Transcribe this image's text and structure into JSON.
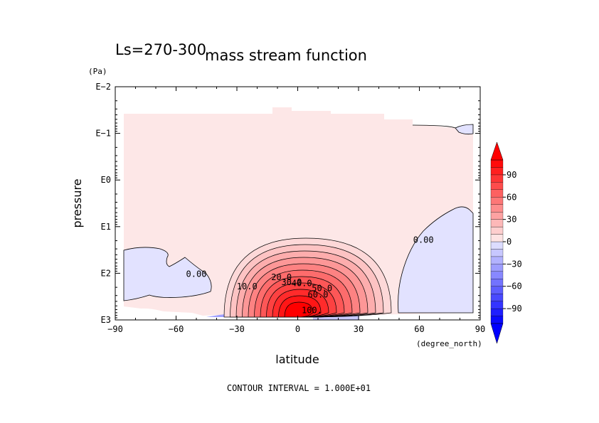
{
  "chart_data": {
    "type": "contour",
    "title": "mass stream function",
    "subtitle": "Ls=270-300",
    "xlabel": "latitude",
    "xunits": "(degree_north)",
    "ylabel": "pressure",
    "yunits": "(Pa)",
    "xlim": [
      -90,
      90
    ],
    "x_ticks": [
      -90,
      -60,
      -30,
      0,
      30,
      60,
      90
    ],
    "x_tick_labels": [
      "−90",
      "−60",
      "−30",
      "0",
      "30",
      "60",
      "90"
    ],
    "y_scale": "log",
    "ylim": [
      0.01,
      1000
    ],
    "y_ticks": [
      0.01,
      0.1,
      1,
      10,
      100,
      1000
    ],
    "y_tick_labels": [
      "E−2",
      "E−1",
      "E0",
      "E1",
      "E2",
      "E3"
    ],
    "contour_labels": [
      {
        "text": "0.00",
        "lat": -50,
        "p": 120
      },
      {
        "text": "0.00",
        "lat": 62,
        "p": 22
      },
      {
        "text": "10.0",
        "lat": -25,
        "p": 220
      },
      {
        "text": "20.0",
        "lat": -8,
        "p": 140
      },
      {
        "text": "30.0",
        "lat": -3,
        "p": 180
      },
      {
        "text": "40.0",
        "lat": 2,
        "p": 190
      },
      {
        "text": "50.0",
        "lat": 12,
        "p": 240
      },
      {
        "text": "60.0",
        "lat": 10,
        "p": 330
      },
      {
        "text": "100.",
        "lat": 7,
        "p": 720
      }
    ],
    "colorbar": {
      "tick_labels": [
        "90",
        "60",
        "30",
        "0",
        "−30",
        "−60",
        "−90"
      ],
      "tick_values": [
        90,
        60,
        30,
        0,
        -30,
        -60,
        -90
      ],
      "range": [
        -110,
        110
      ],
      "step": 10,
      "colors": {
        "max": "#ff0000",
        "min": "#0000ff",
        "mid_pos": "#fde7e7",
        "mid_neg": "#e2e2ff"
      }
    },
    "contour_interval_text": "CONTOUR INTERVAL = 1.000E+01"
  }
}
